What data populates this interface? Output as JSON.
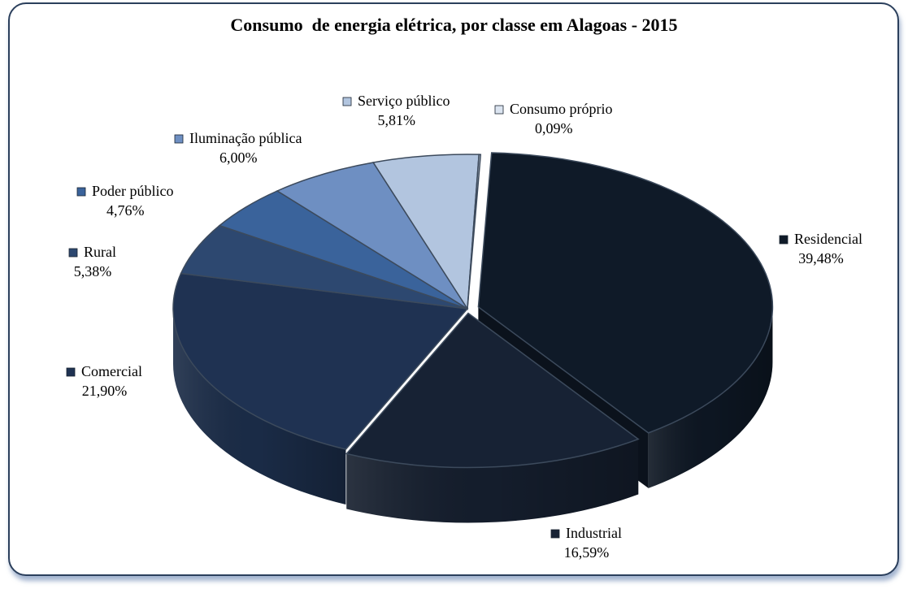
{
  "chart_data": {
    "type": "pie",
    "title": "Consumo  de energia elétrica, por classe em Alagoas - 2015",
    "slices": [
      {
        "label": "Residencial",
        "value": 39.48,
        "display": "39,48%",
        "color": "#0f1a28"
      },
      {
        "label": "Industrial",
        "value": 16.59,
        "display": "16,59%",
        "color": "#172234"
      },
      {
        "label": "Comercial",
        "value": 21.9,
        "display": "21,90%",
        "color": "#1f3252"
      },
      {
        "label": "Rural",
        "value": 5.38,
        "display": "5,38%",
        "color": "#2d4870"
      },
      {
        "label": "Poder público",
        "value": 4.76,
        "display": "4,76%",
        "color": "#3a639b"
      },
      {
        "label": "Iluminação pública",
        "value": 6.0,
        "display": "6,00%",
        "color": "#6e8fc2"
      },
      {
        "label": "Serviço público",
        "value": 5.81,
        "display": "5,81%",
        "color": "#b2c5df"
      },
      {
        "label": "Consumo próprio",
        "value": 0.09,
        "display": "0,09%",
        "color": "#dbe4f0"
      }
    ]
  }
}
